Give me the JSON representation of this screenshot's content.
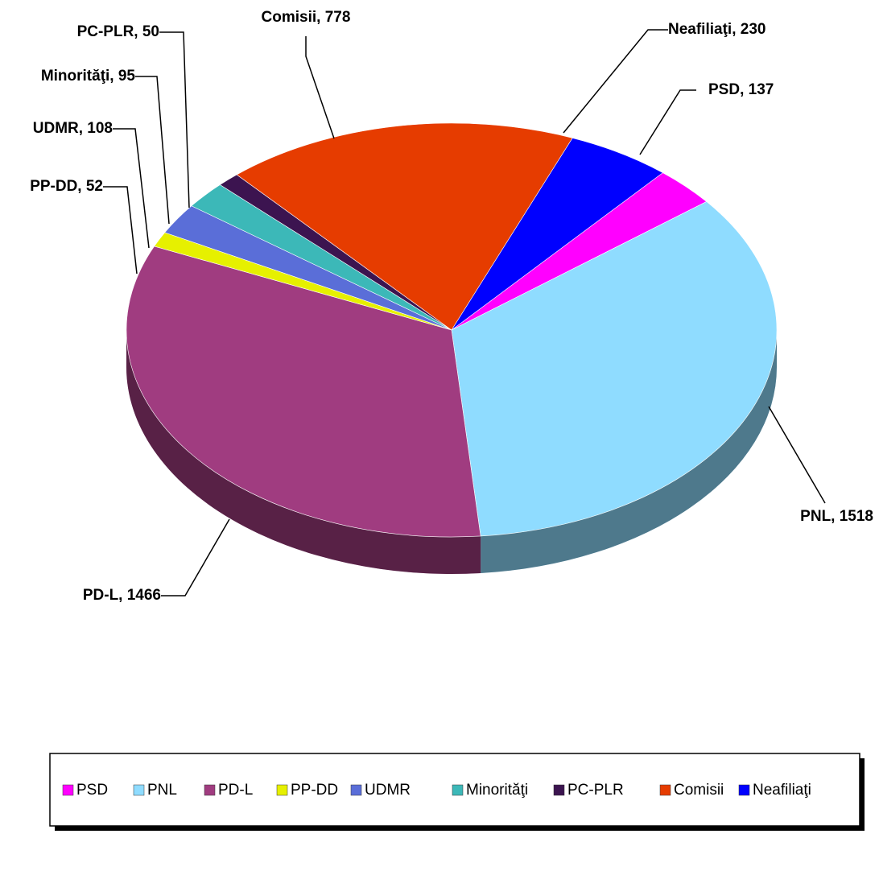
{
  "chart_data": {
    "type": "pie3d",
    "categories": [
      "PSD",
      "PNL",
      "PD-L",
      "PP-DD",
      "UDMR",
      "Minorităţi",
      "PC-PLR",
      "Comisii",
      "Neafiliaţi"
    ],
    "values": [
      137,
      1518,
      1466,
      52,
      108,
      95,
      50,
      778,
      230
    ],
    "value_labels": [
      "PSD, 137",
      "PNL, 1518",
      "PD-L, 1466",
      "PP-DD, 52",
      "UDMR, 108",
      "Minorităţi, 95",
      "PC-PLR, 50",
      "Comisii, 778",
      "Neafiliaţi, 230"
    ],
    "colors": [
      "#ff00ff",
      "#8fdcff",
      "#a03c80",
      "#e6f000",
      "#5a6ed8",
      "#3cb8b8",
      "#3c1450",
      "#e63c00",
      "#0000ff"
    ],
    "legend": "bottom"
  }
}
